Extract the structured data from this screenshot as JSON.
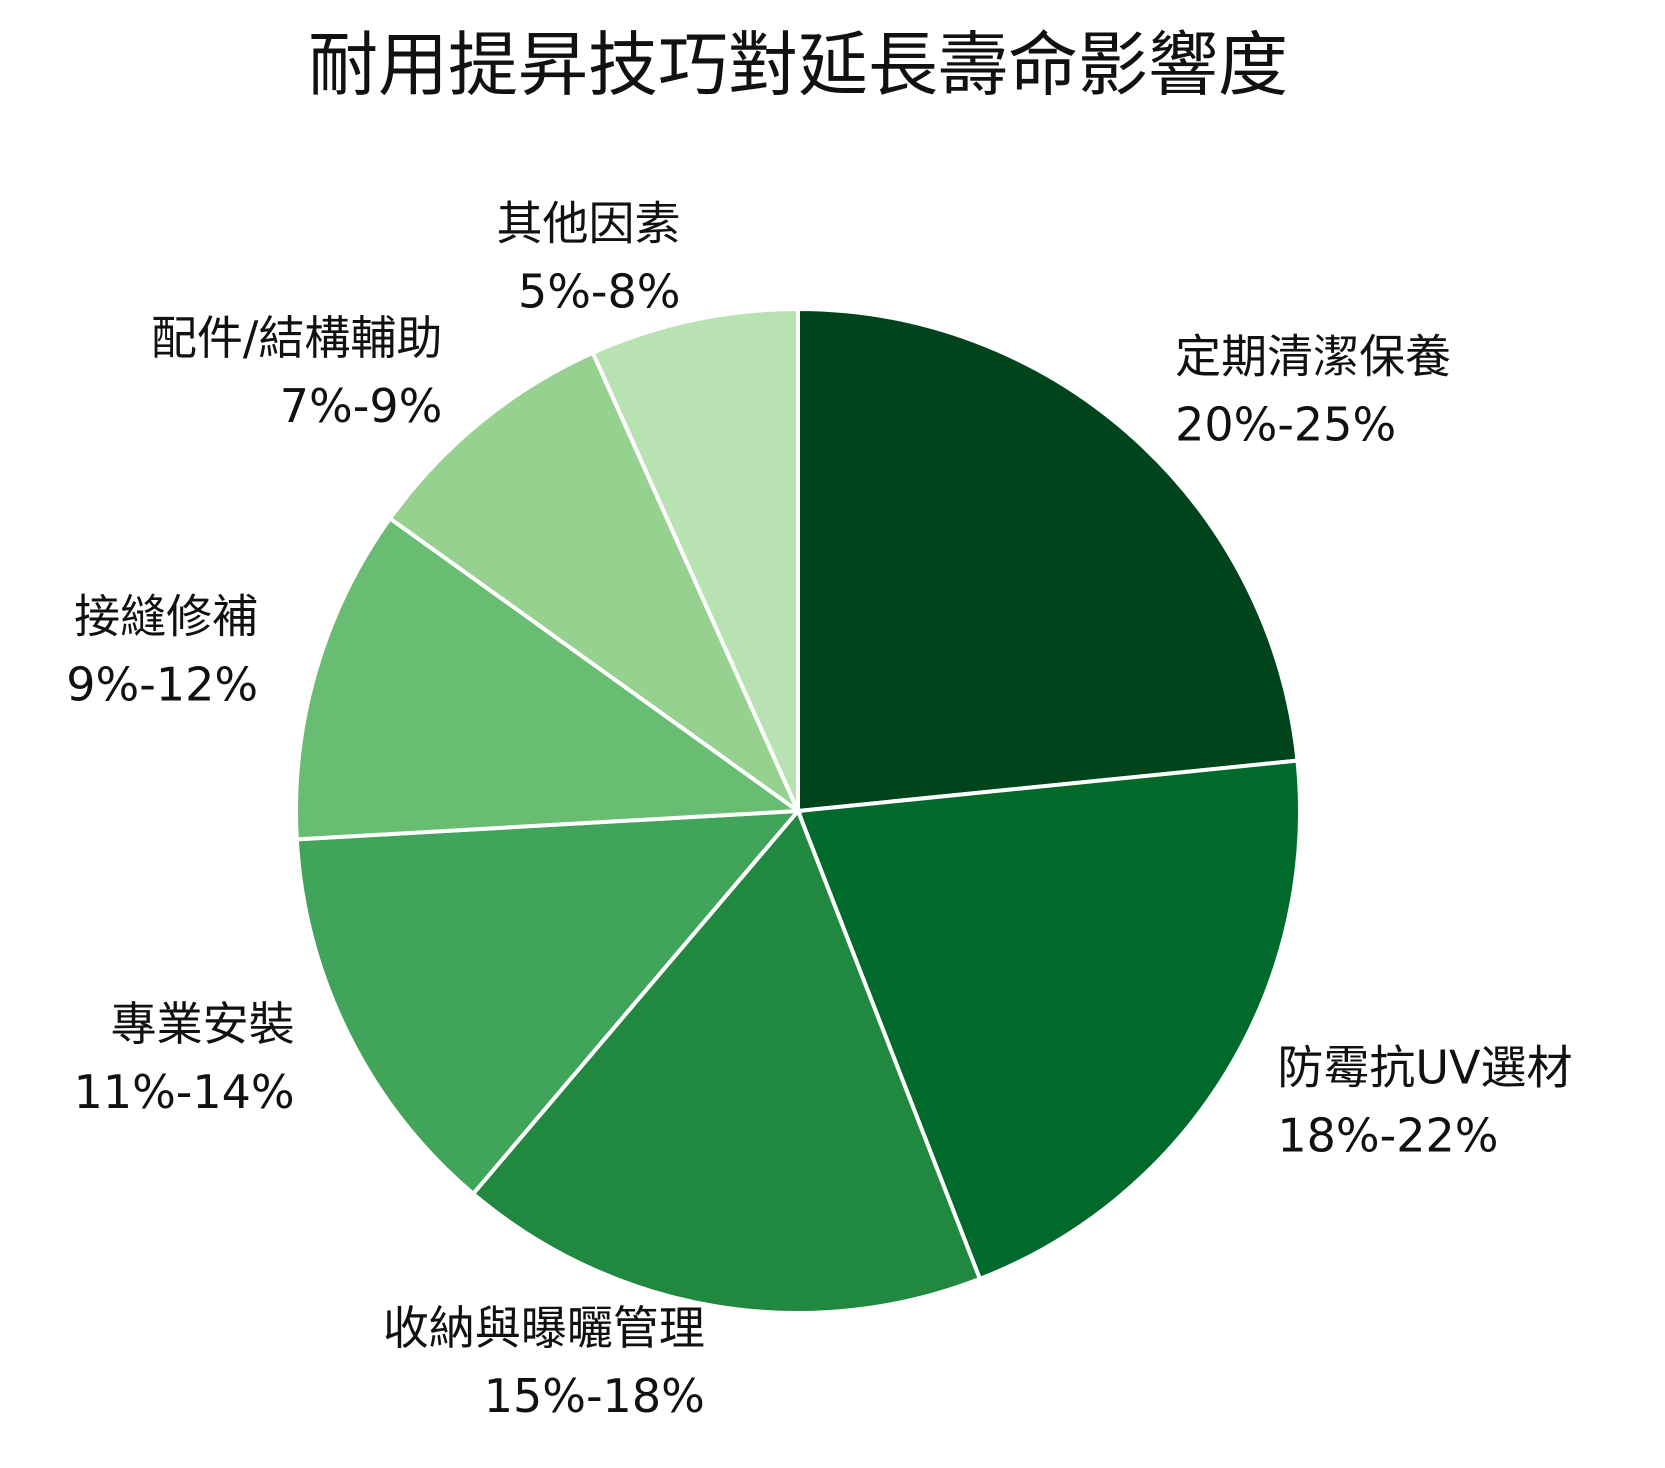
{
  "chart_data": {
    "type": "pie",
    "title": "耐用提昇技巧對延長壽命影響度",
    "categories": [
      "定期清潔保養",
      "防霉抗UV選材",
      "收納與曝曬管理",
      "專業安裝",
      "接縫修補",
      "配件/結構輔助",
      "其他因素"
    ],
    "values": [
      23.4,
      20.7,
      17.1,
      12.9,
      10.8,
      8.4,
      6.7
    ],
    "value_labels": [
      "20%-25%",
      "18%-22%",
      "15%-18%",
      "11%-14%",
      "9%-12%",
      "7%-9%",
      "5%-8%"
    ],
    "colors": [
      "#00441b",
      "#006a2c",
      "#21883f",
      "#40a45a",
      "#69bd72",
      "#96d18f",
      "#b8e2b2"
    ]
  }
}
